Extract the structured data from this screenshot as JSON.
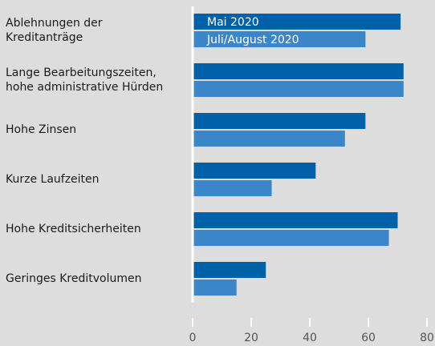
{
  "chart_data": {
    "type": "barh",
    "categories": [
      [
        "Ablehnungen der",
        "Kreditanträge"
      ],
      [
        "Lange Bearbeitungszeiten,",
        "hohe administrative Hürden"
      ],
      [
        "Hohe Zinsen"
      ],
      [
        "Kurze Laufzeiten"
      ],
      [
        "Hohe Kreditsicherheiten"
      ],
      [
        "Geringes Kreditvolumen"
      ]
    ],
    "series": [
      {
        "name": "Mai 2020",
        "color": "#0060a8",
        "values": [
          71,
          72,
          59,
          42,
          70,
          25
        ]
      },
      {
        "name": "Juli/August 2020",
        "color": "#3a86c8",
        "values": [
          59,
          72,
          52,
          27,
          67,
          15
        ]
      }
    ],
    "xlim": [
      0,
      80
    ],
    "xticks": [
      0,
      20,
      40,
      60,
      80
    ],
    "grid": false
  }
}
